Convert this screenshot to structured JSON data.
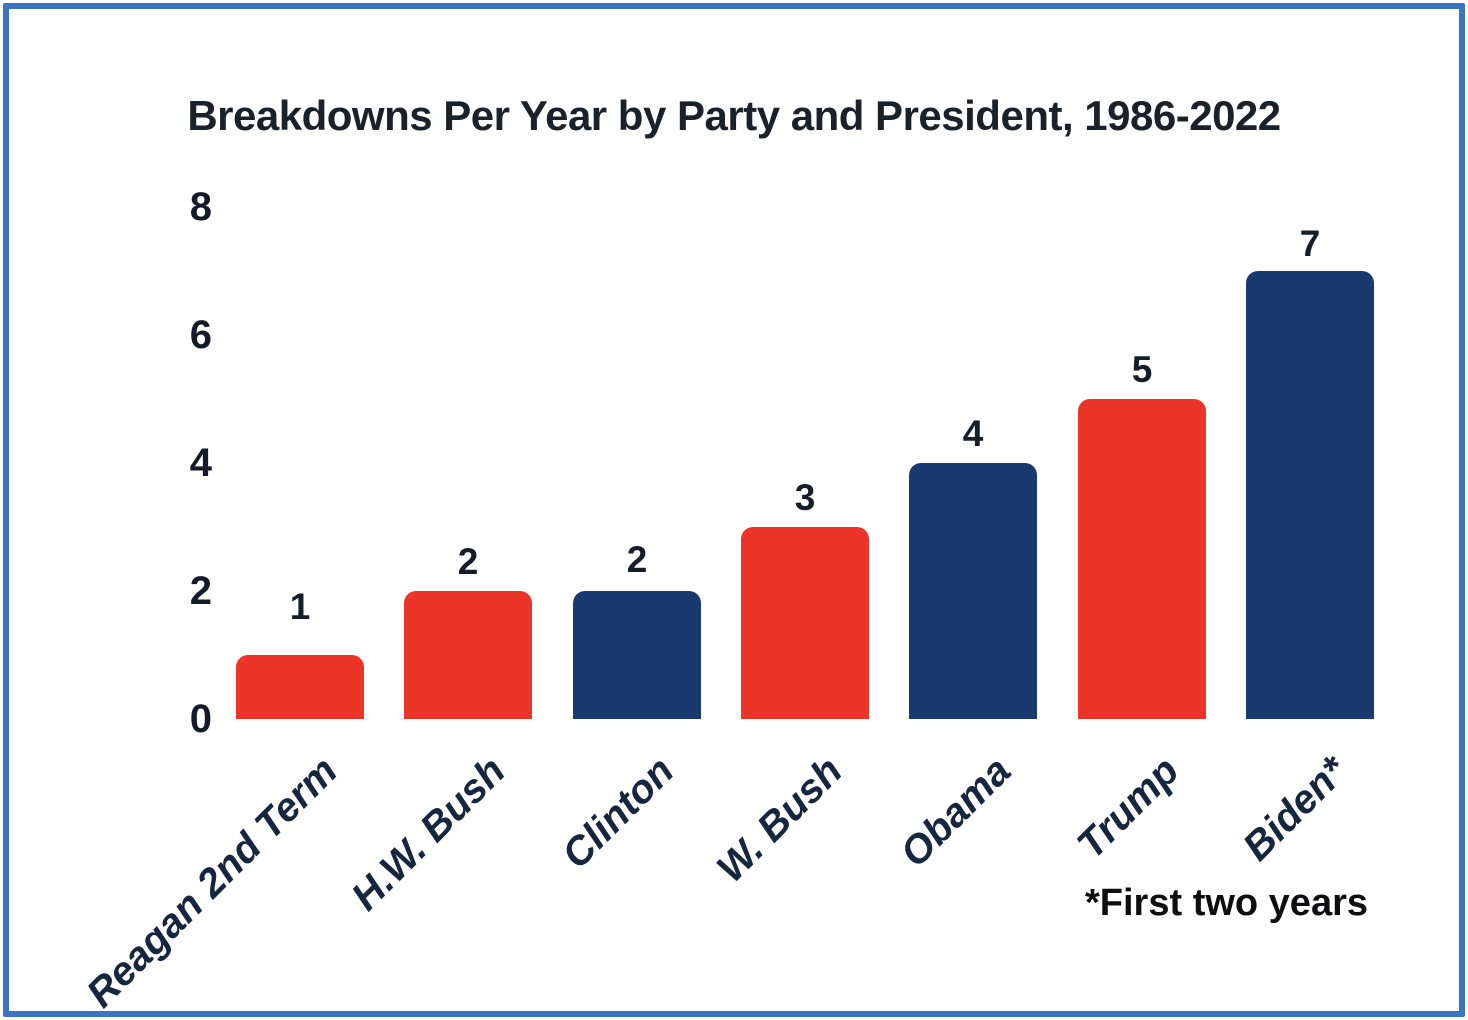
{
  "frame": {
    "border_color": "#3b74c0"
  },
  "chart_data": {
    "type": "bar",
    "title": "Breakdowns Per Year by Party and President, 1986-2022",
    "categories": [
      "Reagan 2nd Term",
      "H.W. Bush",
      "Clinton",
      "W. Bush",
      "Obama",
      "Trump",
      "Biden*"
    ],
    "values": [
      1,
      2,
      2,
      3,
      4,
      5,
      7
    ],
    "parties": [
      "Republican",
      "Republican",
      "Democrat",
      "Republican",
      "Democrat",
      "Republican",
      "Democrat"
    ],
    "party_colors": {
      "Republican": "#ec3428",
      "Democrat": "#1a3a6f"
    },
    "yticks": [
      0,
      2,
      4,
      6,
      8
    ],
    "ylim": [
      0,
      8
    ],
    "xlabel": "",
    "ylabel": "",
    "grid": false,
    "legend": "none",
    "annotation": "*First two years"
  }
}
